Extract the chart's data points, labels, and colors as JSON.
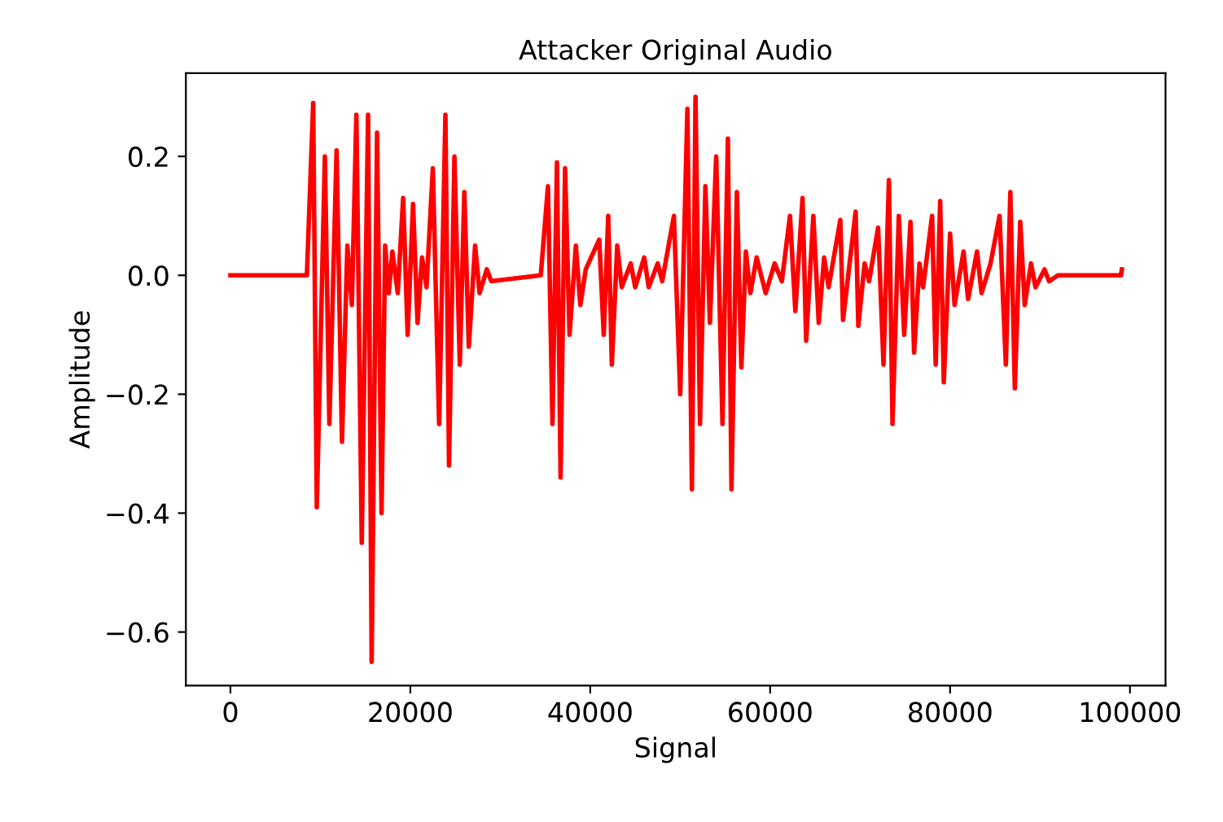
{
  "chart_data": {
    "type": "line",
    "title": "Attacker Original Audio",
    "xlabel": "Signal",
    "ylabel": "Amplitude",
    "xlim": [
      -4950,
      103950
    ],
    "ylim": [
      -0.69,
      0.34
    ],
    "xticks": [
      0,
      20000,
      40000,
      60000,
      80000,
      100000
    ],
    "yticks": [
      {
        "value": -0.6,
        "label": "−0.6"
      },
      {
        "value": -0.4,
        "label": "−0.4"
      },
      {
        "value": -0.2,
        "label": "−0.2"
      },
      {
        "value": 0,
        "label": "0.0"
      },
      {
        "value": 0.2,
        "label": "0.2"
      }
    ],
    "grid": false,
    "legend": false,
    "marker": "none",
    "line_style": "solid",
    "series": [
      {
        "color": "#ff0000",
        "x": [
          0,
          8500,
          9200,
          9600,
          10500,
          11000,
          11800,
          12400,
          13000,
          13500,
          14000,
          14600,
          15300,
          15700,
          16300,
          16800,
          17200,
          17600,
          18000,
          18600,
          19200,
          19700,
          20300,
          20800,
          21300,
          21800,
          22500,
          23200,
          23900,
          24300,
          24900,
          25500,
          26000,
          26500,
          27200,
          27700,
          28500,
          29000,
          34500,
          35300,
          35800,
          36300,
          36700,
          37200,
          37700,
          38400,
          38900,
          39500,
          41000,
          41500,
          42000,
          42400,
          43000,
          43500,
          44500,
          45000,
          46000,
          46500,
          47500,
          48000,
          49300,
          50000,
          50800,
          51300,
          51700,
          52200,
          52800,
          53300,
          54000,
          54700,
          55300,
          55700,
          56300,
          56800,
          57300,
          57800,
          58500,
          59500,
          60500,
          61300,
          62200,
          62800,
          63600,
          64000,
          64800,
          65400,
          66000,
          66500,
          67800,
          68100,
          69500,
          69800,
          70500,
          71000,
          72000,
          72600,
          73200,
          73600,
          74300,
          74900,
          75600,
          76000,
          76600,
          77000,
          78000,
          78400,
          78900,
          79300,
          80000,
          80500,
          81500,
          82000,
          83000,
          83500,
          84500,
          85500,
          86200,
          86700,
          87200,
          87800,
          88300,
          89000,
          89500,
          90500,
          91000,
          92000,
          99000,
          99100
        ],
        "values": [
          0,
          0,
          0.29,
          -0.39,
          0.2,
          -0.25,
          0.21,
          -0.28,
          0.05,
          -0.05,
          0.27,
          -0.45,
          0.27,
          -0.65,
          0.24,
          -0.4,
          0.05,
          -0.03,
          0.04,
          -0.03,
          0.13,
          -0.1,
          0.12,
          -0.08,
          0.03,
          -0.02,
          0.18,
          -0.25,
          0.27,
          -0.32,
          0.2,
          -0.15,
          0.14,
          -0.12,
          0.05,
          -0.03,
          0.01,
          -0.01,
          0,
          0.15,
          -0.25,
          0.19,
          -0.34,
          0.18,
          -0.1,
          0.05,
          -0.05,
          0.01,
          0.06,
          -0.1,
          0.1,
          -0.15,
          0.05,
          -0.02,
          0.02,
          -0.02,
          0.03,
          -0.02,
          0.02,
          -0.01,
          0.1,
          -0.2,
          0.28,
          -0.36,
          0.3,
          -0.25,
          0.15,
          -0.08,
          0.2,
          -0.25,
          0.23,
          -0.36,
          0.14,
          -0.155,
          0.04,
          -0.03,
          0.03,
          -0.03,
          0.02,
          -0.01,
          0.1,
          -0.06,
          0.13,
          -0.11,
          0.1,
          -0.08,
          0.03,
          -0.02,
          0.093,
          -0.075,
          0.107,
          -0.085,
          0.02,
          -0.01,
          0.08,
          -0.15,
          0.16,
          -0.25,
          0.1,
          -0.1,
          0.09,
          -0.13,
          0.02,
          -0.02,
          0.1,
          -0.15,
          0.125,
          -0.18,
          0.07,
          -0.05,
          0.04,
          -0.04,
          0.04,
          -0.03,
          0.02,
          0.1,
          -0.15,
          0.14,
          -0.19,
          0.09,
          -0.05,
          0.02,
          -0.02,
          0.01,
          -0.01,
          0,
          0,
          0.01
        ]
      }
    ]
  }
}
